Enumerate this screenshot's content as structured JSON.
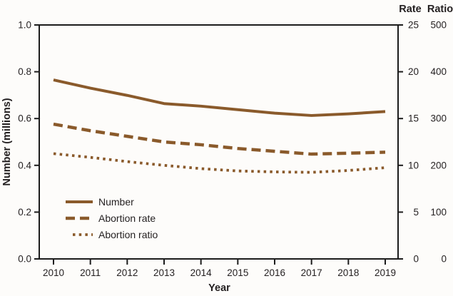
{
  "chart_data": {
    "type": "line",
    "x": [
      2010,
      2011,
      2012,
      2013,
      2014,
      2015,
      2016,
      2017,
      2018,
      2019
    ],
    "series": [
      {
        "name": "Number",
        "axis": "number",
        "style": "solid",
        "values": [
          0.765,
          0.73,
          0.699,
          0.664,
          0.653,
          0.638,
          0.623,
          0.613,
          0.62,
          0.63
        ]
      },
      {
        "name": "Abortion rate",
        "axis": "rate",
        "style": "dashed",
        "values": [
          14.4,
          13.7,
          13.1,
          12.5,
          12.2,
          11.8,
          11.5,
          11.2,
          11.3,
          11.4
        ]
      },
      {
        "name": "Abortion ratio",
        "axis": "ratio",
        "style": "dotted",
        "values": [
          225,
          217,
          208,
          200,
          193,
          188,
          186,
          185,
          189,
          195
        ]
      }
    ],
    "left_axis": {
      "title": "Number (millions)",
      "min": 0,
      "max": 1.0,
      "ticks": [
        "0.0",
        "0.2",
        "0.4",
        "0.6",
        "0.8",
        "1.0"
      ]
    },
    "rate_axis": {
      "title": "Rate",
      "min": 0,
      "max": 25,
      "ticks": [
        "0",
        "5",
        "10",
        "15",
        "20",
        "25"
      ]
    },
    "ratio_axis": {
      "title": "Ratio",
      "min": 0,
      "max": 500,
      "ticks": [
        "0",
        "100",
        "200",
        "300",
        "400",
        "500"
      ]
    },
    "x_axis": {
      "title": "Year",
      "ticks": [
        "2010",
        "2011",
        "2012",
        "2013",
        "2014",
        "2015",
        "2016",
        "2017",
        "2018",
        "2019"
      ]
    },
    "legend": [
      {
        "label": "Number",
        "style": "solid"
      },
      {
        "label": "Abortion rate",
        "style": "dashed"
      },
      {
        "label": "Abortion ratio",
        "style": "dotted"
      }
    ],
    "legend_position": "lower-left-inside",
    "grid": false,
    "colors": {
      "line": "#8a5a2b",
      "axis": "#1c1c1c",
      "text": "#231f20",
      "background": "#fdfcfa"
    }
  }
}
